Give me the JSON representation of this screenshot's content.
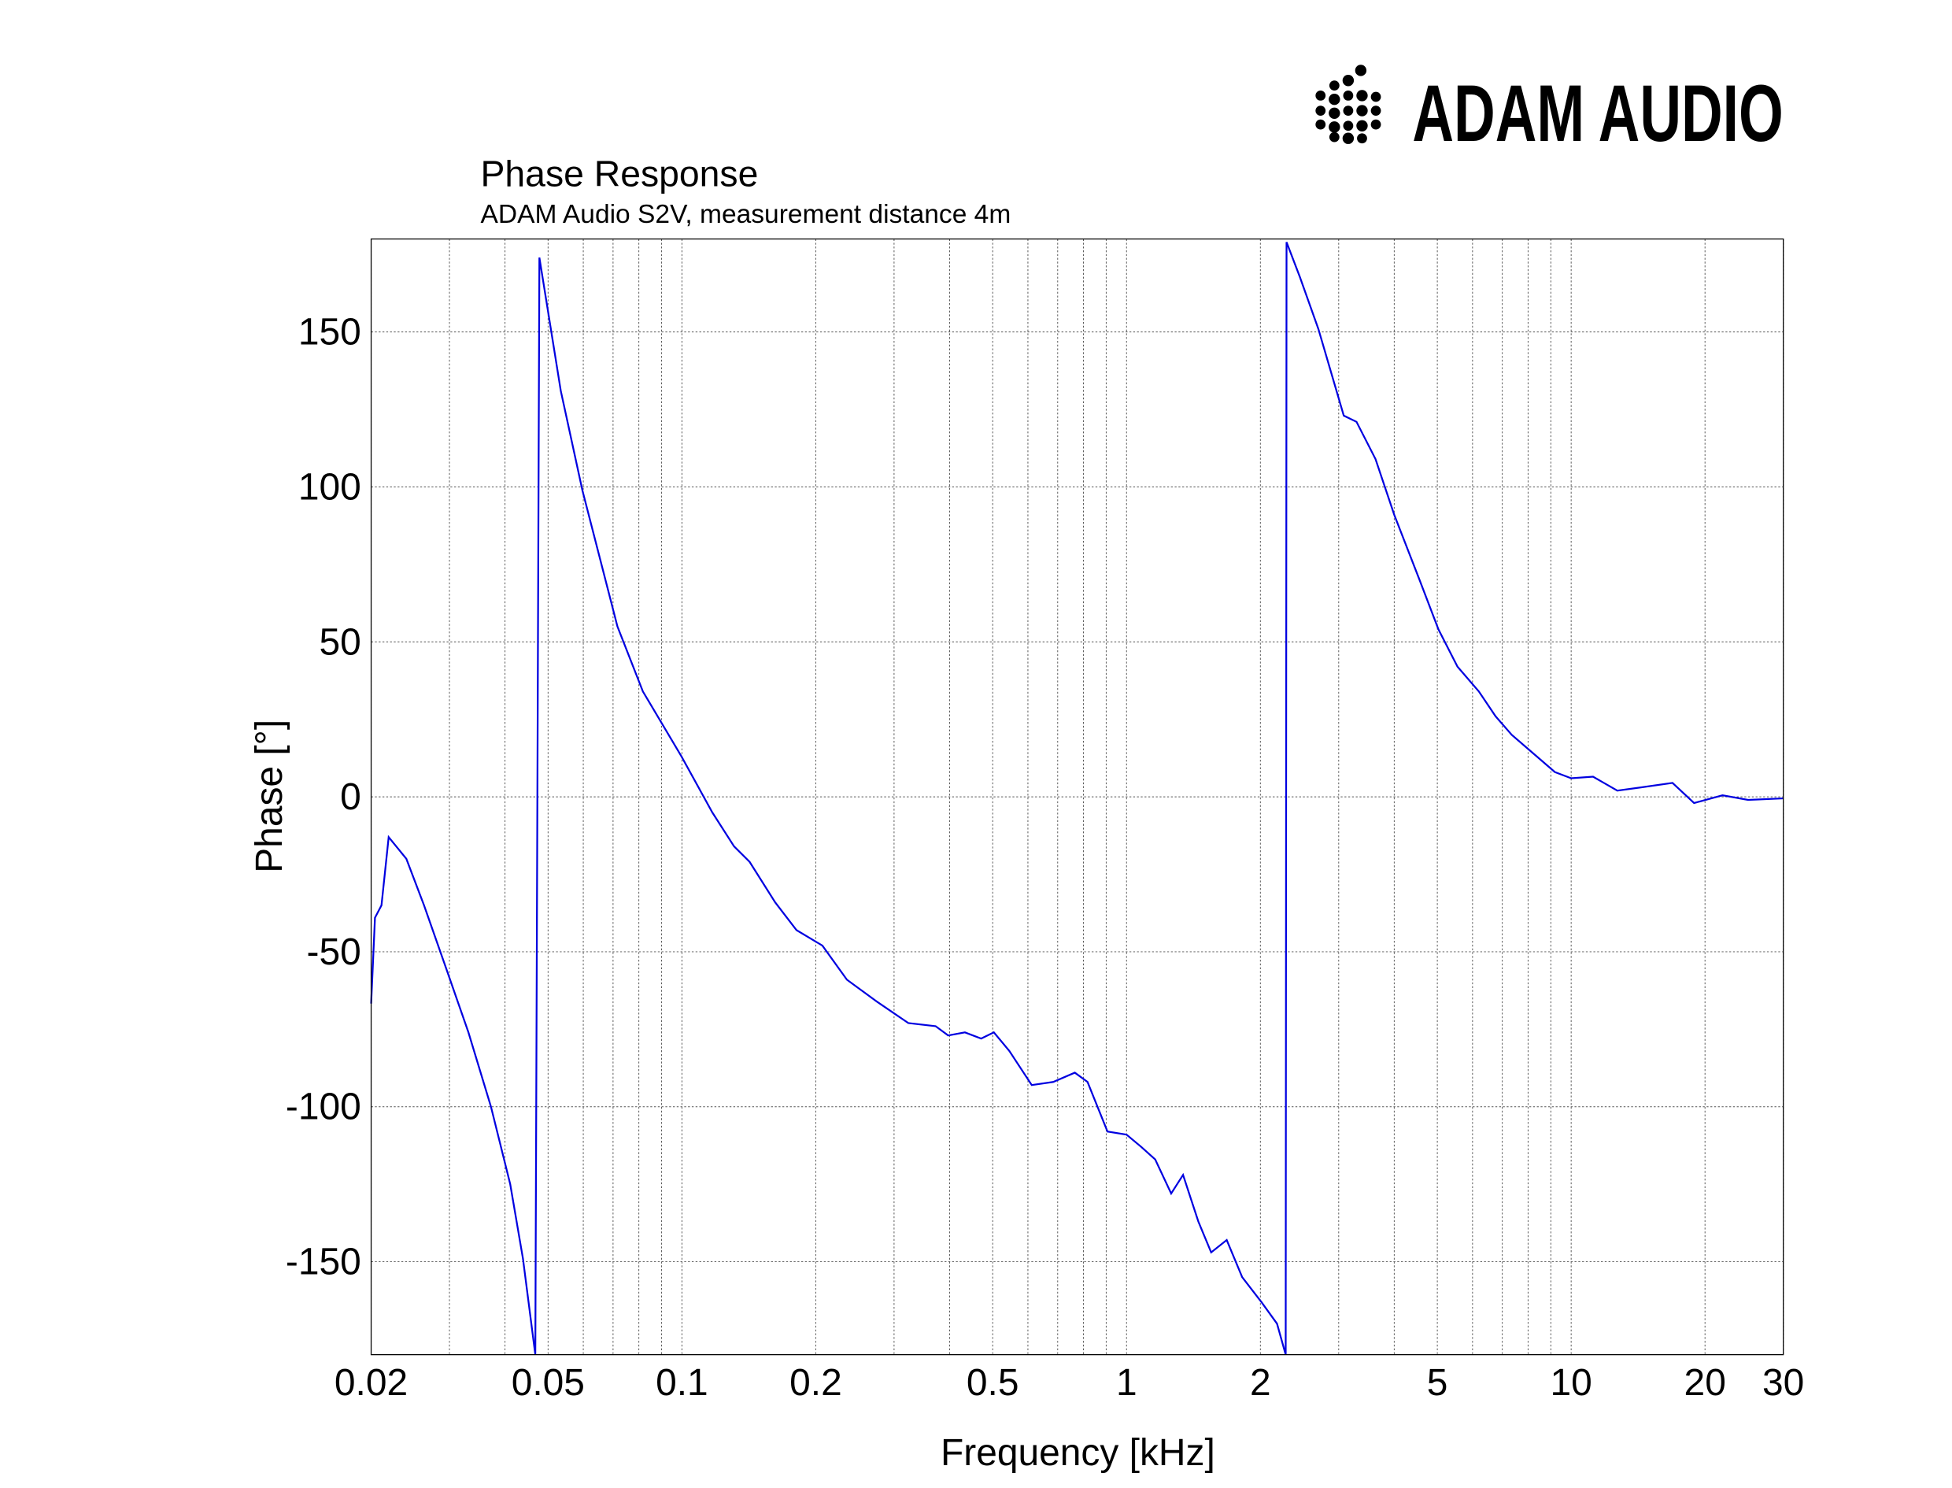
{
  "logo": "ADAM AUDIO",
  "chart_data": {
    "type": "line",
    "title": "Phase Response",
    "subtitle": "ADAM Audio S2V, measurement distance 4m",
    "x_label": "Frequency [kHz]",
    "y_label": "Phase [°]",
    "x_scale": "log",
    "grid": true,
    "color": "#0000e0",
    "xlim": [
      0.02,
      30
    ],
    "ylim": [
      -180,
      180
    ],
    "xticks": [
      0.02,
      0.05,
      0.1,
      0.2,
      0.5,
      1,
      2,
      5,
      10,
      20,
      30
    ],
    "xminor": [
      0.03,
      0.04,
      0.06,
      0.07,
      0.08,
      0.09,
      0.3,
      0.4,
      0.6,
      0.7,
      0.8,
      0.9,
      3,
      4,
      6,
      7,
      8,
      9
    ],
    "yticks": [
      -150,
      -100,
      -50,
      0,
      50,
      100,
      150
    ],
    "x": [
      0.02,
      0.0204,
      0.0211,
      0.0219,
      0.024,
      0.0263,
      0.0296,
      0.0331,
      0.0372,
      0.0411,
      0.0439,
      0.0468,
      0.0478,
      0.0534,
      0.0597,
      0.0716,
      0.0817,
      0.0998,
      0.117,
      0.131,
      0.142,
      0.162,
      0.181,
      0.207,
      0.235,
      0.274,
      0.323,
      0.372,
      0.397,
      0.433,
      0.471,
      0.503,
      0.545,
      0.612,
      0.684,
      0.765,
      0.817,
      0.906,
      1.0,
      1.08,
      1.16,
      1.26,
      1.34,
      1.45,
      1.55,
      1.68,
      1.82,
      2.01,
      2.18,
      2.28,
      2.29,
      2.45,
      2.7,
      3.08,
      3.29,
      3.63,
      4.0,
      4.56,
      5.03,
      5.55,
      6.2,
      6.76,
      7.35,
      8.22,
      9.19,
      10.0,
      11.2,
      12.7,
      14.3,
      16.9,
      18.9,
      21.9,
      25.0,
      30
    ],
    "values": [
      -66.7,
      -39,
      -35,
      -13,
      -20,
      -35,
      -56,
      -76,
      -100,
      -125,
      -149,
      -180,
      174,
      131,
      99,
      55,
      34,
      13,
      -5,
      -16,
      -21,
      -34,
      -43,
      -48,
      -59,
      -66,
      -73,
      -74,
      -77,
      -76,
      -78,
      -76,
      -82,
      -93,
      -92,
      -89,
      -92,
      -108,
      -109,
      -113,
      -117,
      -128,
      -122,
      -137,
      -147,
      -143,
      -155,
      -163,
      -170,
      -180,
      179,
      168,
      151,
      123,
      121,
      109,
      91,
      70,
      54,
      42,
      34,
      26,
      20,
      14,
      8,
      6,
      6.5,
      2,
      3,
      4.5,
      -2,
      0.5,
      -1,
      -0.5
    ]
  }
}
